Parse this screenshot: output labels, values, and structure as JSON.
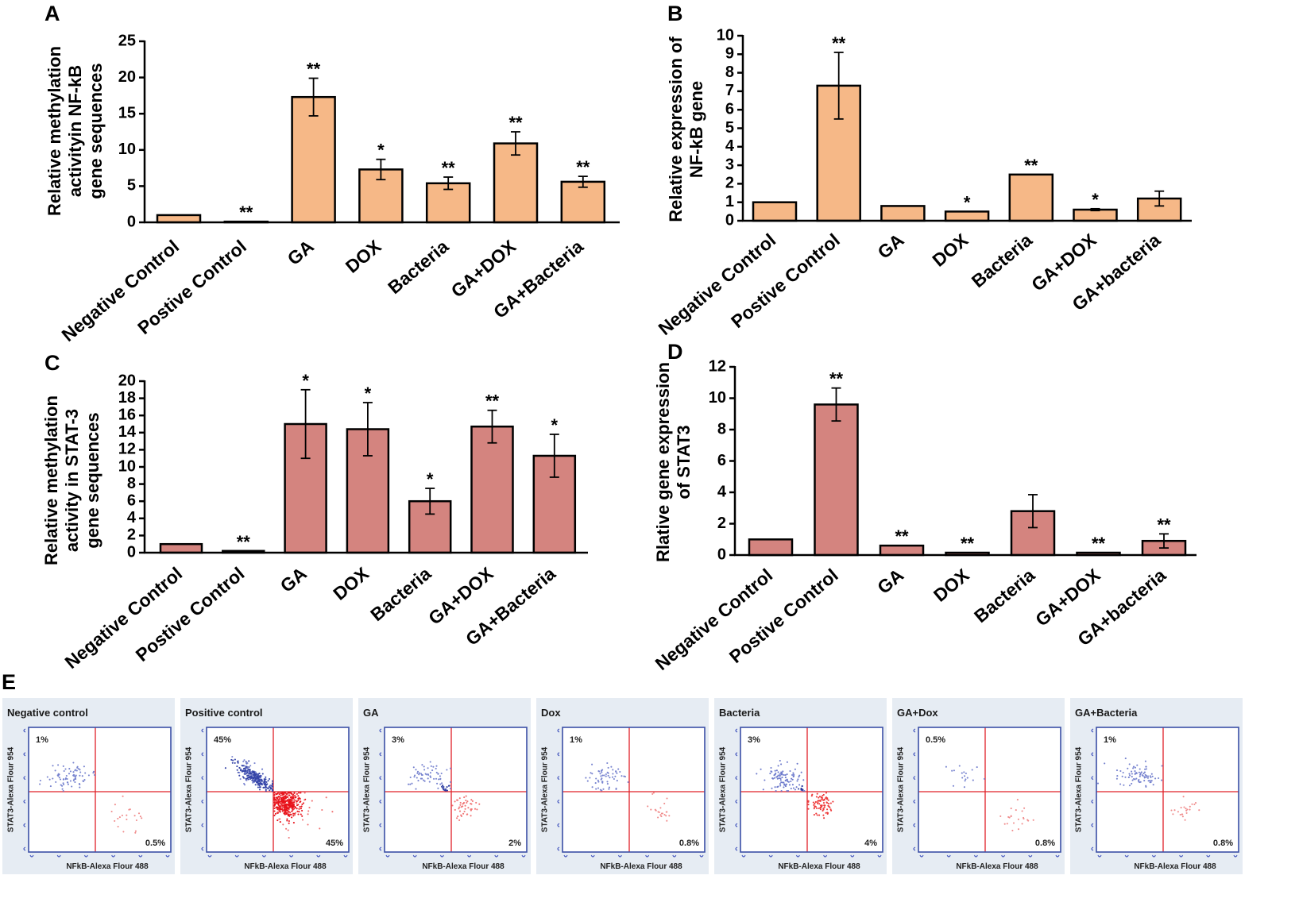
{
  "chart_data": [
    {
      "panel": "A",
      "type": "bar",
      "title": "",
      "xlabel": "",
      "ylabel_lines": [
        "Relative methylation",
        "activityin NF-kB",
        "gene sequences"
      ],
      "categories": [
        "Negative Control",
        "Postive Control",
        "GA",
        "DOX",
        "Bacteria",
        "GA+DOX",
        "GA+Bacteria"
      ],
      "values": [
        1.0,
        0.1,
        17.3,
        7.3,
        5.4,
        10.9,
        5.6
      ],
      "errors": [
        0,
        0,
        2.6,
        1.4,
        0.85,
        1.6,
        0.75
      ],
      "significance": [
        "",
        "**",
        "**",
        "*",
        "**",
        "**",
        "**"
      ],
      "yticks": [
        0,
        5,
        10,
        15,
        20,
        25
      ],
      "ylim": [
        0,
        25
      ],
      "color": "#f6b887"
    },
    {
      "panel": "B",
      "type": "bar",
      "title": "",
      "xlabel": "",
      "ylabel_lines": [
        "Relative expression of",
        "NF-kB gene"
      ],
      "categories": [
        "Negative Control",
        "Postive Control",
        "GA",
        "DOX",
        "Bacteria",
        "GA+DOX",
        "GA+bacteria"
      ],
      "values": [
        1.0,
        7.3,
        0.8,
        0.5,
        2.5,
        0.6,
        1.2
      ],
      "errors": [
        0,
        1.8,
        0,
        0,
        0,
        0.05,
        0.4
      ],
      "significance": [
        "",
        "**",
        "",
        "*",
        "**",
        "*",
        ""
      ],
      "yticks": [
        0,
        1,
        2,
        3,
        4,
        5,
        6,
        7,
        8,
        9,
        10
      ],
      "ylim": [
        0,
        10
      ],
      "color": "#f6b887"
    },
    {
      "panel": "C",
      "type": "bar",
      "title": "",
      "xlabel": "",
      "ylabel_lines": [
        "Relative methylation",
        "activity in STAT-3",
        "gene sequences"
      ],
      "categories": [
        "Negative Control",
        "Postive Control",
        "GA",
        "DOX",
        "Bacteria",
        "GA+DOX",
        "GA+Bacteria"
      ],
      "values": [
        1.0,
        0.2,
        15.0,
        14.4,
        6.0,
        14.7,
        11.3
      ],
      "errors": [
        0,
        0,
        4.0,
        3.1,
        1.5,
        1.9,
        2.5
      ],
      "significance": [
        "",
        "**",
        "*",
        "*",
        "*",
        "**",
        "*"
      ],
      "yticks": [
        0,
        2,
        4,
        6,
        8,
        10,
        12,
        14,
        16,
        18,
        20
      ],
      "ylim": [
        0,
        20
      ],
      "color": "#d4847f"
    },
    {
      "panel": "D",
      "type": "bar",
      "title": "",
      "xlabel": "",
      "ylabel_lines": [
        "Rlative gene expression",
        "of STAT3"
      ],
      "categories": [
        "Negative Control",
        "Postive Control",
        "GA",
        "DOX",
        "Bacteria",
        "GA+DOX",
        "GA+bacteria"
      ],
      "values": [
        1.0,
        9.6,
        0.6,
        0.15,
        2.8,
        0.15,
        0.9
      ],
      "errors": [
        0,
        1.05,
        0,
        0,
        1.05,
        0,
        0.45
      ],
      "significance": [
        "",
        "**",
        "**",
        "**",
        "",
        "**",
        "**"
      ],
      "yticks": [
        0,
        2,
        4,
        6,
        8,
        10,
        12
      ],
      "ylim": [
        0,
        12
      ],
      "color": "#d4847f"
    }
  ],
  "flow_cytometry": {
    "panel": "E",
    "xlabel": "NFkB-Alexa Flour 488",
    "ylabel": "STAT3-Alexa Flour 954",
    "panels": [
      {
        "title": "Negative control",
        "upper_left": "1%",
        "lower_right": "0.5%"
      },
      {
        "title": "Positive control",
        "upper_left": "45%",
        "lower_right": "45%"
      },
      {
        "title": "GA",
        "upper_left": "3%",
        "lower_right": "2%"
      },
      {
        "title": "Dox",
        "upper_left": "1%",
        "lower_right": "0.8%"
      },
      {
        "title": "Bacteria",
        "upper_left": "3%",
        "lower_right": "4%"
      },
      {
        "title": "GA+Dox",
        "upper_left": "0.5%",
        "lower_right": "0.8%"
      },
      {
        "title": "GA+Bacteria",
        "upper_left": "1%",
        "lower_right": "0.8%"
      }
    ],
    "colors": {
      "quadrant_lines": "#e02028",
      "frame": "#3b4fa6",
      "panel_background": "#e6ecf3",
      "axis_ticks": "#4a5cc0"
    }
  }
}
